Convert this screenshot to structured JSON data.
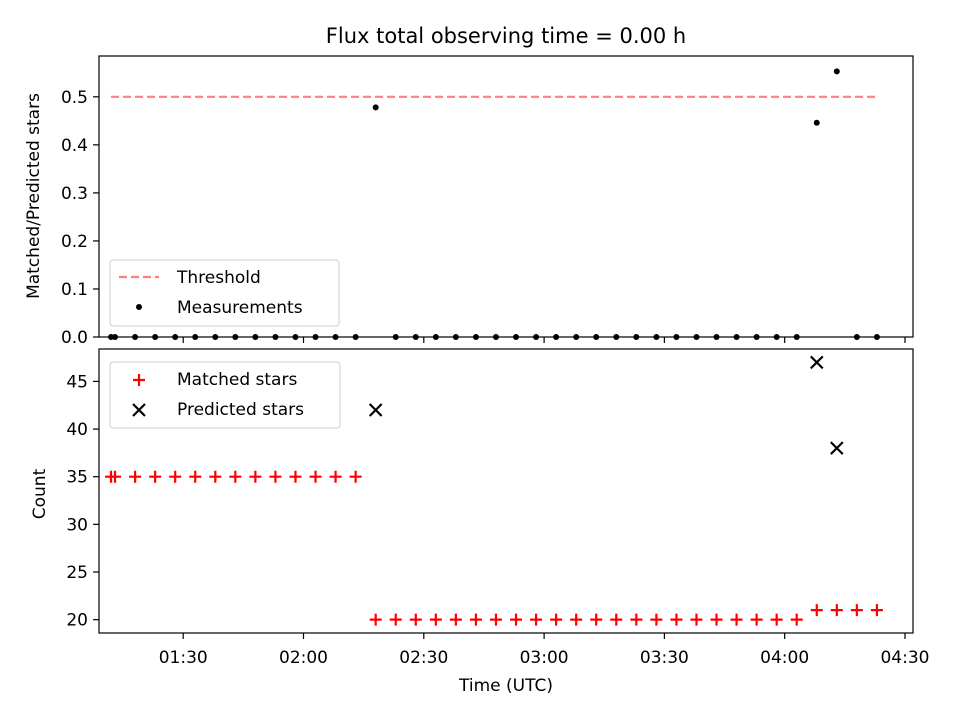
{
  "figure": {
    "title": "Flux total observing time = 0.00 h"
  },
  "chart_data": [
    {
      "type": "scatter",
      "ylabel": "Matched/Predicted stars",
      "xlim": [
        "01:09",
        "04:32"
      ],
      "ylim": [
        0,
        0.585
      ],
      "yticks": [
        0.0,
        0.1,
        0.2,
        0.3,
        0.4,
        0.5
      ],
      "ytick_labels": [
        "0.0",
        "0.1",
        "0.2",
        "0.3",
        "0.4",
        "0.5"
      ],
      "grid": false,
      "legend_position": "lower-left",
      "threshold": {
        "name": "Threshold",
        "value": 0.5,
        "x_start": "01:12",
        "x_end": "04:23",
        "color": "#ff7f7f",
        "style": "dashed"
      },
      "series": [
        {
          "name": "Measurements",
          "color": "#000000",
          "marker": "dot",
          "x": [
            "01:12",
            "01:13",
            "01:18",
            "01:23",
            "01:28",
            "01:33",
            "01:38",
            "01:43",
            "01:48",
            "01:53",
            "01:58",
            "02:03",
            "02:08",
            "02:13",
            "02:18",
            "02:23",
            "02:28",
            "02:33",
            "02:38",
            "02:43",
            "02:48",
            "02:53",
            "02:58",
            "03:03",
            "03:08",
            "03:13",
            "03:18",
            "03:23",
            "03:28",
            "03:33",
            "03:38",
            "03:43",
            "03:48",
            "03:53",
            "03:58",
            "04:03",
            "04:08",
            "04:13",
            "04:18",
            "04:23"
          ],
          "y": [
            0,
            0,
            0,
            0,
            0,
            0,
            0,
            0,
            0,
            0,
            0,
            0,
            0,
            0,
            0.478,
            0,
            0,
            0,
            0,
            0,
            0,
            0,
            0,
            0,
            0,
            0,
            0,
            0,
            0,
            0,
            0,
            0,
            0,
            0,
            0,
            0,
            0.446,
            0.553,
            0,
            0
          ]
        }
      ]
    },
    {
      "type": "scatter",
      "xlabel": "Time (UTC)",
      "ylabel": "Count",
      "xlim": [
        "01:09",
        "04:32"
      ],
      "xticks": [
        "01:30",
        "02:00",
        "02:30",
        "03:00",
        "03:30",
        "04:00",
        "04:30"
      ],
      "ylim": [
        18.6,
        48.4
      ],
      "yticks": [
        20,
        25,
        30,
        35,
        40,
        45
      ],
      "ytick_labels": [
        "20",
        "25",
        "30",
        "35",
        "40",
        "45"
      ],
      "grid": false,
      "legend_position": "upper-left",
      "series": [
        {
          "name": "Matched stars",
          "color": "#ff0000",
          "marker": "plus",
          "x": [
            "01:12",
            "01:13",
            "01:18",
            "01:23",
            "01:28",
            "01:33",
            "01:38",
            "01:43",
            "01:48",
            "01:53",
            "01:58",
            "02:03",
            "02:08",
            "02:13",
            "02:18",
            "02:23",
            "02:28",
            "02:33",
            "02:38",
            "02:43",
            "02:48",
            "02:53",
            "02:58",
            "03:03",
            "03:08",
            "03:13",
            "03:18",
            "03:23",
            "03:28",
            "03:33",
            "03:38",
            "03:43",
            "03:48",
            "03:53",
            "03:58",
            "04:03",
            "04:08",
            "04:13",
            "04:18",
            "04:23"
          ],
          "y": [
            35,
            35,
            35,
            35,
            35,
            35,
            35,
            35,
            35,
            35,
            35,
            35,
            35,
            35,
            20,
            20,
            20,
            20,
            20,
            20,
            20,
            20,
            20,
            20,
            20,
            20,
            20,
            20,
            20,
            20,
            20,
            20,
            20,
            20,
            20,
            20,
            21,
            21,
            21,
            21
          ]
        },
        {
          "name": "Predicted stars",
          "color": "#000000",
          "marker": "x",
          "x": [
            "02:18",
            "04:08",
            "04:13"
          ],
          "y": [
            42,
            47,
            38
          ]
        }
      ]
    }
  ]
}
